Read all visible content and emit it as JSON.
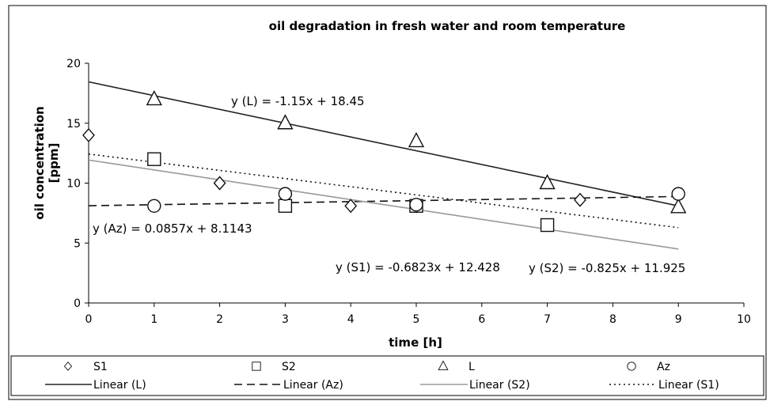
{
  "chart_data": {
    "type": "scatter",
    "title": "oil degradation in fresh water and room temperature",
    "xlabel": "time [h]",
    "ylabel": "oil concentration [ppm]",
    "xlim": [
      0,
      10
    ],
    "ylim": [
      0,
      20
    ],
    "xticks": [
      "0",
      "1",
      "2",
      "3",
      "4",
      "5",
      "6",
      "7",
      "8",
      "9",
      "10"
    ],
    "yticks": [
      "0",
      "5",
      "10",
      "15",
      "20"
    ],
    "grid": false,
    "legend_position": "bottom",
    "series": [
      {
        "name": "S1",
        "marker": "diamond",
        "x": [
          0,
          2,
          4,
          5,
          7.5
        ],
        "y": [
          14,
          10,
          8.1,
          8.1,
          8.6
        ]
      },
      {
        "name": "S2",
        "marker": "square",
        "x": [
          1,
          3,
          5,
          7
        ],
        "y": [
          12,
          8.1,
          8.1,
          6.5
        ]
      },
      {
        "name": "L",
        "marker": "triangle",
        "x": [
          1,
          3,
          5,
          7,
          9
        ],
        "y": [
          17,
          15,
          13.5,
          10,
          8
        ]
      },
      {
        "name": "Az",
        "marker": "circle",
        "x": [
          1,
          3,
          5,
          9
        ],
        "y": [
          8.1,
          9.1,
          8.2,
          9.1
        ]
      }
    ],
    "trendlines": [
      {
        "name": "Linear (L)",
        "slope": -1.15,
        "intercept": 18.45,
        "x_range": [
          0,
          9
        ],
        "style": "solid",
        "color": "#222222",
        "equation": "y (L) = -1.15x + 18.45"
      },
      {
        "name": "Linear (Az)",
        "slope": 0.0857,
        "intercept": 8.1143,
        "x_range": [
          0,
          9
        ],
        "style": "dashed",
        "color": "#111111",
        "equation": "y (Az) = 0.0857x + 8.1143"
      },
      {
        "name": "Linear (S2)",
        "slope": -0.825,
        "intercept": 11.925,
        "x_range": [
          0,
          9
        ],
        "style": "solid",
        "color": "#999999",
        "equation": "y (S2) = -0.825x + 11.925"
      },
      {
        "name": "Linear (S1)",
        "slope": -0.6823,
        "intercept": 12.428,
        "x_range": [
          0,
          9
        ],
        "style": "dotted",
        "color": "#111111",
        "equation": "y (S1) = -0.6823x + 12.428"
      }
    ]
  }
}
